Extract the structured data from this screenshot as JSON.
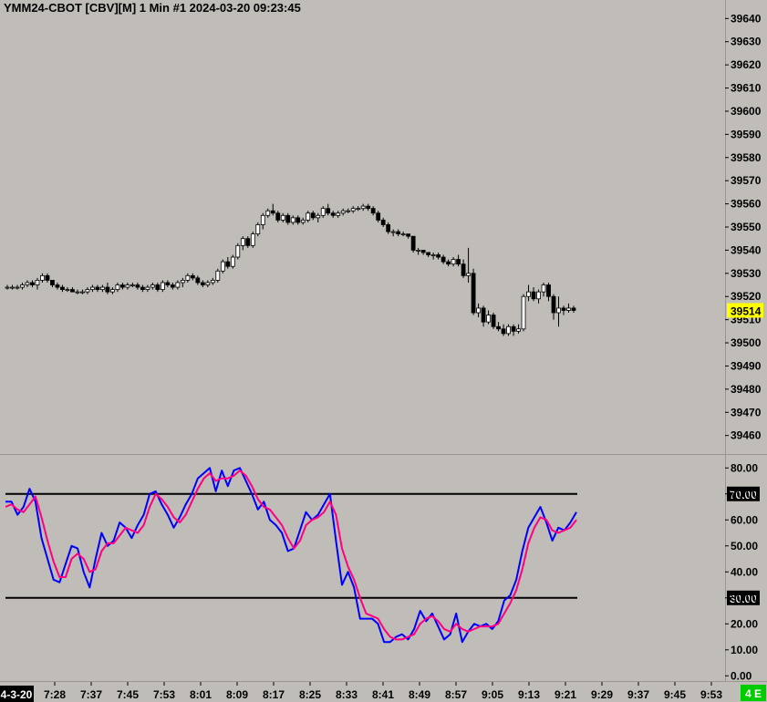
{
  "chart_data": [
    {
      "type": "candlestick",
      "title": "YMM24-CBOT [CBV][M]  1 Min  #1 2024-03-20 09:23:45",
      "ylim": [
        39452,
        39648
      ],
      "y_ticks": [
        "39640",
        "39630",
        "39620",
        "39610",
        "39600",
        "39590",
        "39580",
        "39570",
        "39560",
        "39550",
        "39540",
        "39530",
        "39520",
        "39510",
        "39500",
        "39490",
        "39480",
        "39470",
        "39460"
      ],
      "last_price": {
        "label": "39514",
        "value": 39514,
        "color": "#ffff00"
      },
      "bar_colors": {
        "up": "#ffffff",
        "down": "#000000"
      },
      "series": [
        {
          "name": "YMM24",
          "ohlc": [
            [
              39524,
              39525,
              39523,
              39524
            ],
            [
              39524,
              39525,
              39523,
              39524
            ],
            [
              39524,
              39525,
              39523,
              39524
            ],
            [
              39524,
              39526,
              39523,
              39525
            ],
            [
              39525,
              39527,
              39524,
              39526
            ],
            [
              39526,
              39527,
              39524,
              39525
            ],
            [
              39525,
              39528,
              39523,
              39527
            ],
            [
              39527,
              39530,
              39526,
              39529
            ],
            [
              39529,
              39530,
              39526,
              39527
            ],
            [
              39527,
              39527,
              39524,
              39525
            ],
            [
              39525,
              39526,
              39523,
              39524
            ],
            [
              39524,
              39525,
              39522,
              39523
            ],
            [
              39523,
              39524,
              39522,
              39523
            ],
            [
              39523,
              39524,
              39522,
              39522
            ],
            [
              39522,
              39523,
              39521,
              39522
            ],
            [
              39522,
              39523,
              39521,
              39522
            ],
            [
              39522,
              39524,
              39521,
              39523
            ],
            [
              39523,
              39525,
              39522,
              39524
            ],
            [
              39524,
              39525,
              39522,
              39523
            ],
            [
              39523,
              39525,
              39522,
              39524
            ],
            [
              39524,
              39526,
              39521,
              39522
            ],
            [
              39522,
              39524,
              39521,
              39523
            ],
            [
              39523,
              39526,
              39522,
              39525
            ],
            [
              39525,
              39526,
              39523,
              39524
            ],
            [
              39524,
              39526,
              39523,
              39525
            ],
            [
              39525,
              39526,
              39524,
              39525
            ],
            [
              39525,
              39526,
              39523,
              39524
            ],
            [
              39524,
              39525,
              39522,
              39523
            ],
            [
              39523,
              39525,
              39522,
              39524
            ],
            [
              39524,
              39526,
              39523,
              39525
            ],
            [
              39525,
              39526,
              39522,
              39523
            ],
            [
              39523,
              39527,
              39522,
              39526
            ],
            [
              39526,
              39527,
              39524,
              39525
            ],
            [
              39525,
              39526,
              39523,
              39524
            ],
            [
              39524,
              39527,
              39523,
              39526
            ],
            [
              39526,
              39528,
              39524,
              39527
            ],
            [
              39527,
              39530,
              39526,
              39529
            ],
            [
              39529,
              39530,
              39527,
              39528
            ],
            [
              39528,
              39529,
              39525,
              39526
            ],
            [
              39526,
              39527,
              39524,
              39525
            ],
            [
              39525,
              39527,
              39524,
              39526
            ],
            [
              39526,
              39528,
              39525,
              39527
            ],
            [
              39527,
              39532,
              39526,
              39531
            ],
            [
              39531,
              39536,
              39530,
              39535
            ],
            [
              39535,
              39537,
              39532,
              39533
            ],
            [
              39533,
              39538,
              39532,
              39537
            ],
            [
              39537,
              39543,
              39536,
              39542
            ],
            [
              39542,
              39546,
              39540,
              39545
            ],
            [
              39545,
              39546,
              39541,
              39542
            ],
            [
              39542,
              39548,
              39541,
              39547
            ],
            [
              39547,
              39552,
              39546,
              39551
            ],
            [
              39551,
              39556,
              39549,
              39555
            ],
            [
              39555,
              39558,
              39554,
              39557
            ],
            [
              39557,
              39560,
              39555,
              39556
            ],
            [
              39556,
              39557,
              39552,
              39553
            ],
            [
              39553,
              39556,
              39552,
              39555
            ],
            [
              39555,
              39556,
              39551,
              39552
            ],
            [
              39552,
              39555,
              39551,
              39554
            ],
            [
              39554,
              39555,
              39551,
              39552
            ],
            [
              39552,
              39554,
              39551,
              39553
            ],
            [
              39553,
              39557,
              39552,
              39556
            ],
            [
              39556,
              39557,
              39553,
              39554
            ],
            [
              39554,
              39556,
              39552,
              39555
            ],
            [
              39555,
              39559,
              39554,
              39558
            ],
            [
              39558,
              39560,
              39555,
              39556
            ],
            [
              39556,
              39557,
              39554,
              39555
            ],
            [
              39555,
              39557,
              39554,
              39556
            ],
            [
              39556,
              39558,
              39555,
              39557
            ],
            [
              39557,
              39558,
              39556,
              39557
            ],
            [
              39557,
              39559,
              39556,
              39558
            ],
            [
              39558,
              39559,
              39557,
              39558
            ],
            [
              39558,
              39560,
              39557,
              39559
            ],
            [
              39559,
              39560,
              39557,
              39558
            ],
            [
              39558,
              39559,
              39555,
              39556
            ],
            [
              39556,
              39557,
              39552,
              39553
            ],
            [
              39553,
              39554,
              39550,
              39551
            ],
            [
              39551,
              39552,
              39547,
              39548
            ],
            [
              39548,
              39549,
              39546,
              39548
            ],
            [
              39548,
              39549,
              39546,
              39547
            ],
            [
              39547,
              39548,
              39546,
              39547
            ],
            [
              39547,
              39547,
              39545,
              39546
            ],
            [
              39546,
              39546,
              39539,
              39540
            ],
            [
              39540,
              39541,
              39538,
              39540
            ],
            [
              39540,
              39540,
              39538,
              39539
            ],
            [
              39539,
              39539,
              39537,
              39538
            ],
            [
              39538,
              39539,
              39536,
              39538
            ],
            [
              39538,
              39539,
              39536,
              39537
            ],
            [
              39537,
              39538,
              39534,
              39535
            ],
            [
              39535,
              39536,
              39533,
              39534
            ],
            [
              39534,
              39537,
              39533,
              39536
            ],
            [
              39536,
              39538,
              39533,
              39534
            ],
            [
              39534,
              39536,
              39528,
              39529
            ],
            [
              39529,
              39541,
              39526,
              39530
            ],
            [
              39530,
              39532,
              39512,
              39513
            ],
            [
              39513,
              39517,
              39511,
              39515
            ],
            [
              39515,
              39516,
              39507,
              39509
            ],
            [
              39509,
              39514,
              39508,
              39512
            ],
            [
              39512,
              39513,
              39506,
              39507
            ],
            [
              39507,
              39509,
              39505,
              39506
            ],
            [
              39506,
              39508,
              39503,
              39504
            ],
            [
              39504,
              39508,
              39503,
              39507
            ],
            [
              39507,
              39508,
              39503,
              39505
            ],
            [
              39505,
              39508,
              39504,
              39506
            ],
            [
              39506,
              39521,
              39505,
              39520
            ],
            [
              39520,
              39525,
              39518,
              39522
            ],
            [
              39522,
              39524,
              39518,
              39519
            ],
            [
              39519,
              39523,
              39517,
              39522
            ],
            [
              39522,
              39526,
              39520,
              39525
            ],
            [
              39525,
              39526,
              39518,
              39520
            ],
            [
              39520,
              39521,
              39510,
              39513
            ],
            [
              39513,
              39520,
              39507,
              39515
            ],
            [
              39515,
              39516,
              39512,
              39514
            ],
            [
              39514,
              39517,
              39513,
              39515
            ],
            [
              39515,
              39516,
              39513,
              39514
            ]
          ]
        }
      ]
    },
    {
      "type": "line",
      "ylim": [
        -2,
        85
      ],
      "y_ticks": [
        "80.00",
        "70.00",
        "60.00",
        "50.00",
        "40.00",
        "30.00",
        "20.00",
        "10.00",
        "0.00"
      ],
      "levels": [
        {
          "label": "70.00",
          "value": 70
        },
        {
          "label": "30.00",
          "value": 30
        }
      ],
      "x_ticks": [
        "4-3-20",
        "7:28",
        "7:37",
        "7:45",
        "7:53",
        "8:01",
        "8:09",
        "8:17",
        "8:25",
        "8:33",
        "8:41",
        "8:49",
        "8:57",
        "9:05",
        "9:13",
        "9:21",
        "9:29",
        "9:37",
        "9:45",
        "9:53"
      ],
      "series": [
        {
          "color": "#0000ff",
          "values": [
            67,
            67,
            62,
            65,
            72,
            67,
            53,
            45,
            37,
            36,
            43,
            50,
            49,
            40,
            34,
            45,
            55,
            50,
            52,
            59,
            57,
            53,
            58,
            62,
            70,
            71,
            66,
            62,
            57,
            61,
            66,
            70,
            76,
            78,
            80,
            71,
            79,
            73,
            79,
            80,
            75,
            70,
            64,
            67,
            60,
            58,
            55,
            48,
            49,
            56,
            63,
            60,
            62,
            66,
            70,
            52,
            35,
            40,
            34,
            22,
            22,
            22,
            20,
            13,
            13,
            15,
            16,
            14,
            18,
            25,
            21,
            24,
            19,
            14,
            16,
            24,
            13,
            17,
            20,
            19,
            20,
            18,
            21,
            29,
            31,
            37,
            48,
            57,
            61,
            65,
            59,
            52,
            57,
            56,
            59,
            63
          ]
        },
        {
          "color": "#ff0080",
          "values": [
            65,
            66,
            64,
            63,
            66,
            69,
            61,
            52,
            44,
            38,
            38,
            45,
            47,
            45,
            40,
            41,
            48,
            51,
            51,
            54,
            57,
            56,
            55,
            58,
            65,
            70,
            68,
            65,
            61,
            59,
            62,
            67,
            72,
            76,
            78,
            75,
            76,
            76,
            77,
            79,
            77,
            73,
            68,
            65,
            64,
            61,
            58,
            53,
            49,
            52,
            58,
            60,
            61,
            63,
            67,
            62,
            49,
            42,
            37,
            30,
            24,
            23,
            22,
            18,
            15,
            14,
            14,
            15,
            16,
            20,
            22,
            23,
            21,
            18,
            17,
            20,
            18,
            17,
            18,
            19,
            19,
            19,
            20,
            24,
            28,
            33,
            41,
            51,
            57,
            61,
            60,
            56,
            55,
            56,
            57,
            60
          ]
        }
      ]
    }
  ]
}
